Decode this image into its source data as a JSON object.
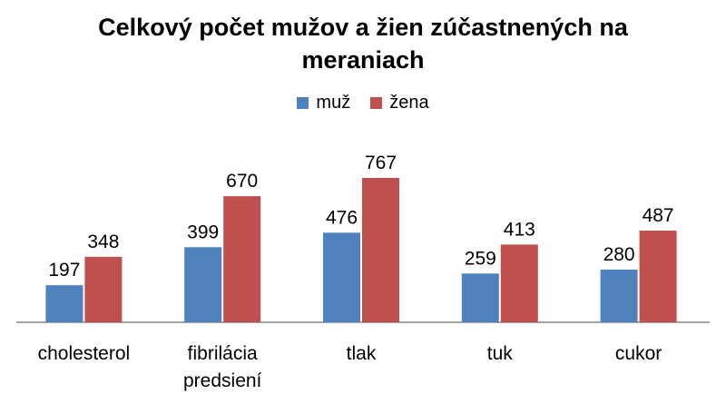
{
  "chart_data": {
    "type": "bar",
    "title_lines": [
      "Celkový počet mužov a žien zúčastnených na",
      "meraniach"
    ],
    "categories": [
      [
        "cholesterol"
      ],
      [
        "fibrilácia",
        "predsiení"
      ],
      [
        "tlak"
      ],
      [
        "tuk"
      ],
      [
        "cukor"
      ]
    ],
    "series": [
      {
        "name": "muž",
        "color": "#4F81BD",
        "values": [
          197,
          399,
          476,
          259,
          280
        ]
      },
      {
        "name": "žena",
        "color": "#C0504D",
        "values": [
          348,
          670,
          767,
          413,
          487
        ]
      }
    ],
    "xlabel": "",
    "ylabel": "",
    "ylim": [
      0,
      900
    ],
    "grid": false,
    "legend_position": "top",
    "data_labels": true
  }
}
